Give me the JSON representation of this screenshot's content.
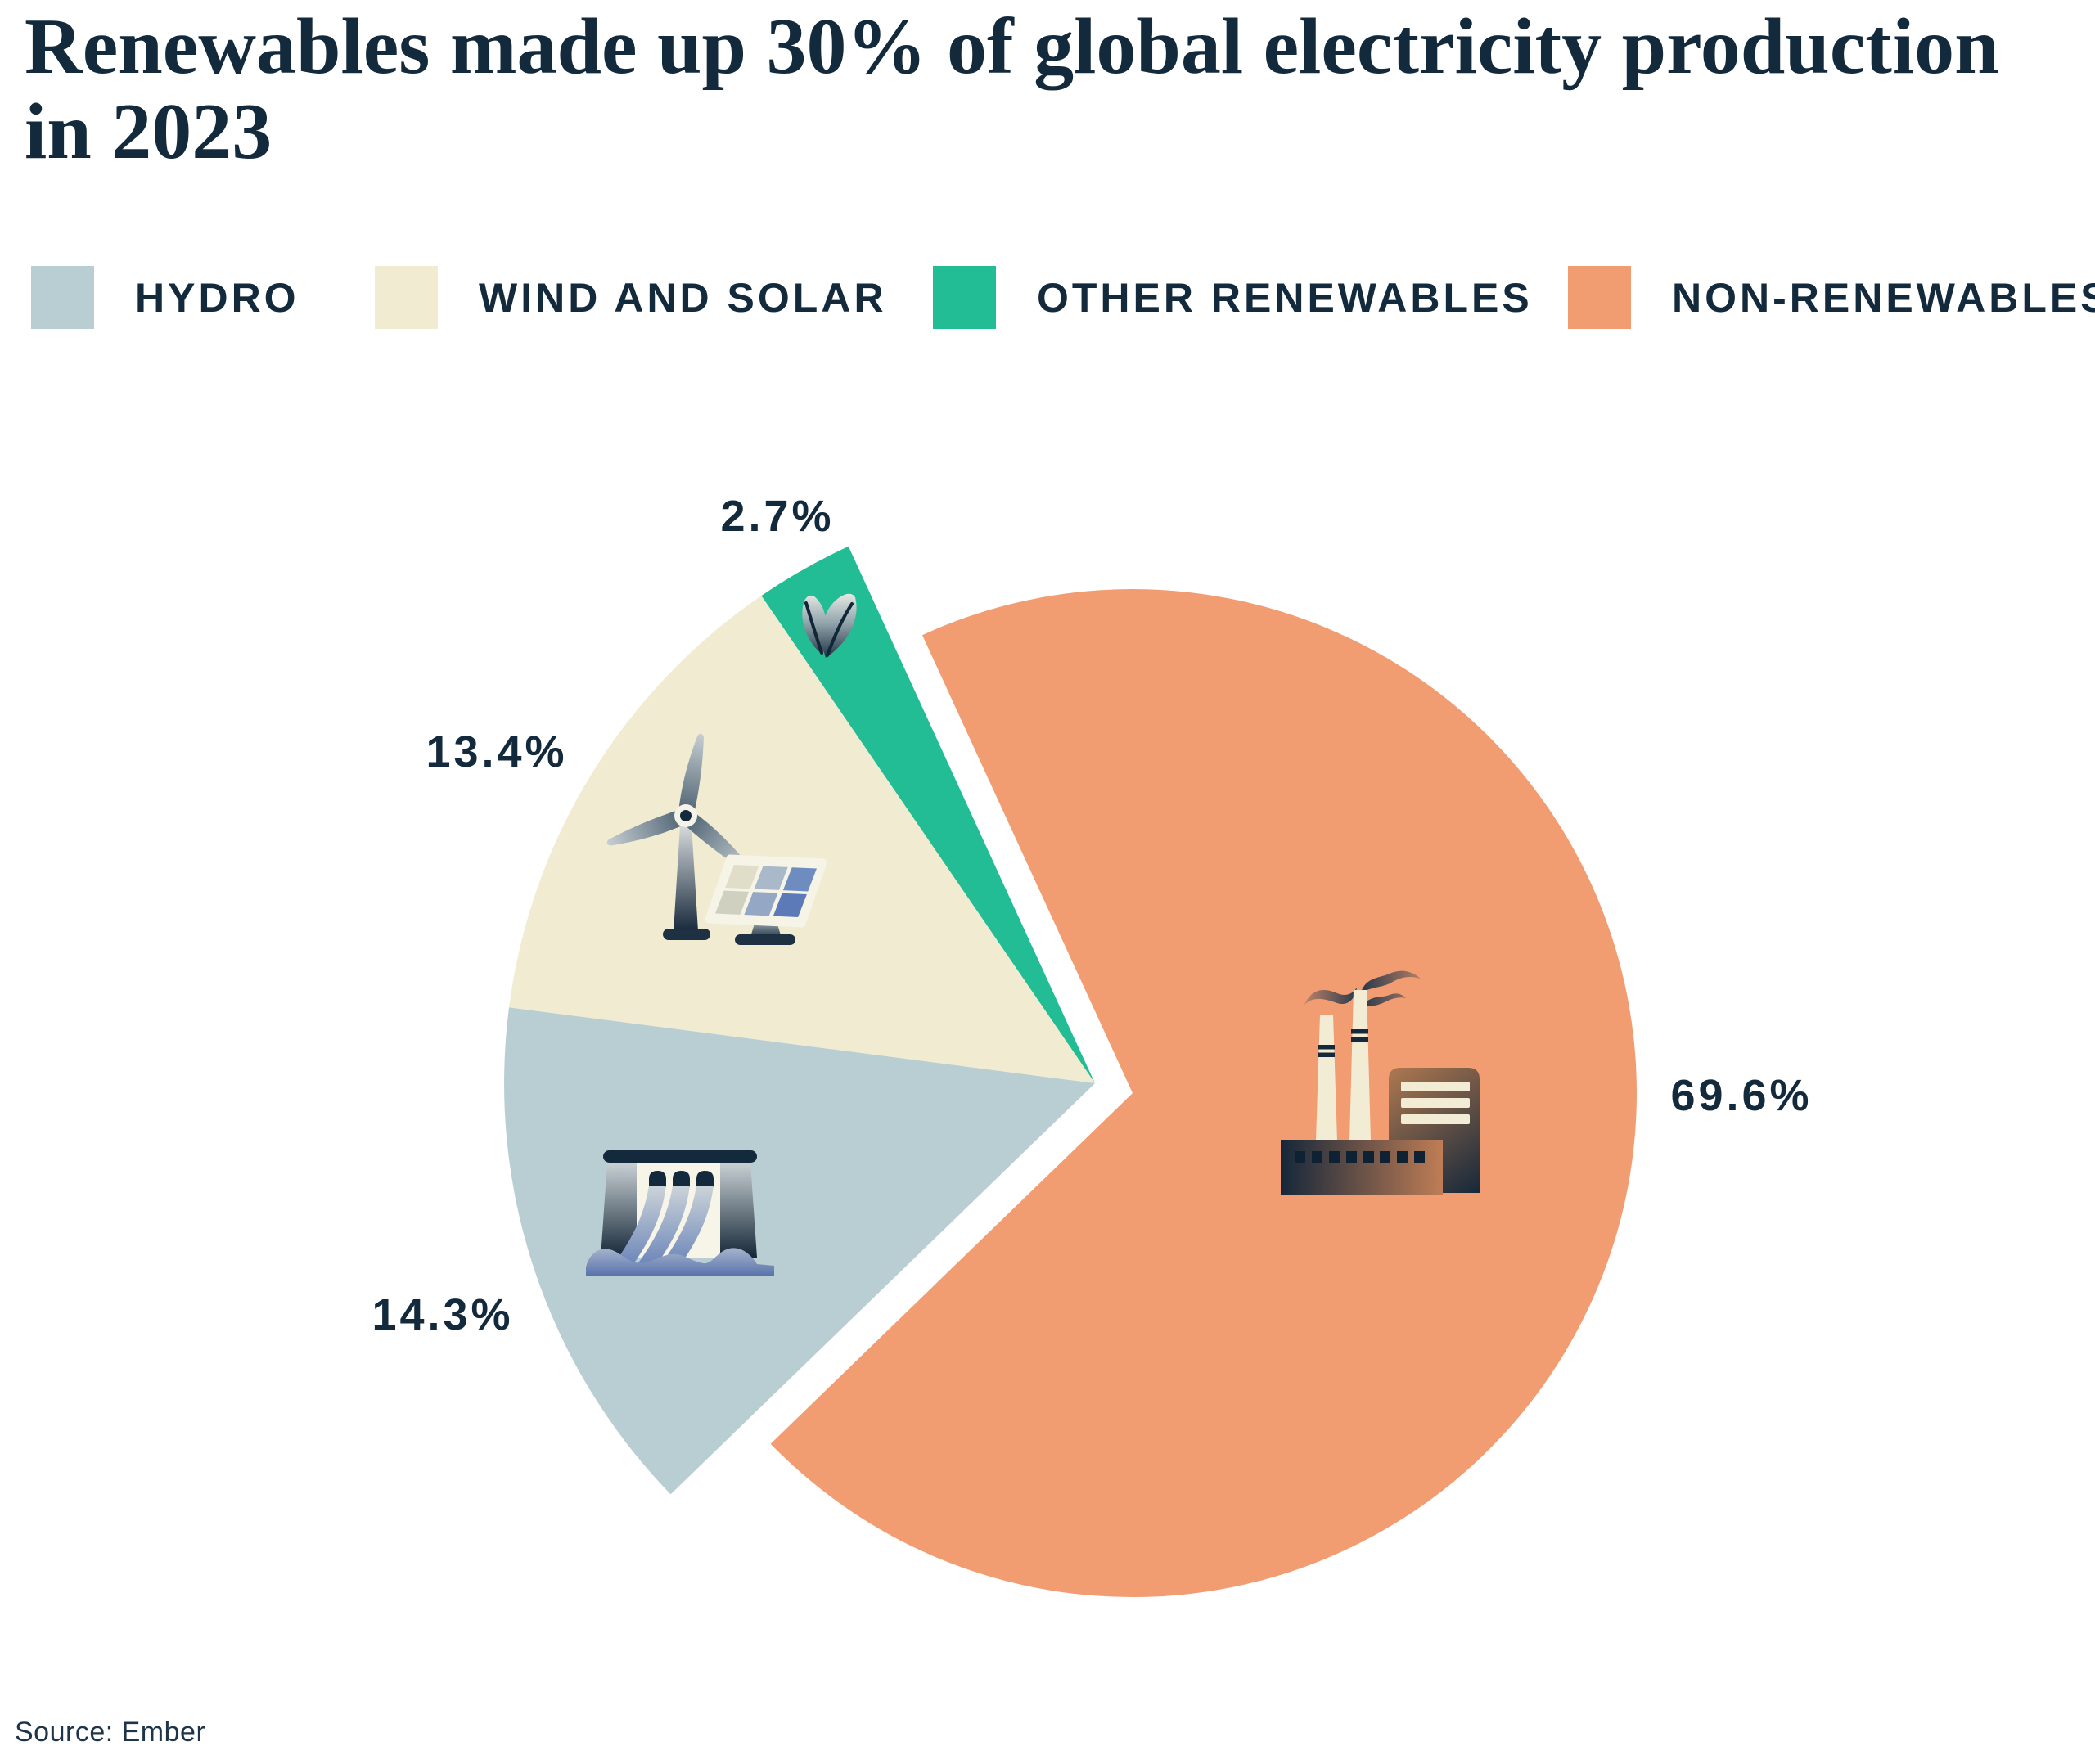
{
  "title": "Renewables made up 30% of global electricity production in 2023",
  "source": "Source: Ember",
  "accent_colors": {
    "navy": "#13293c",
    "hydro": "#b9ced3",
    "wind_and_solar": "#f1ecd1",
    "other_renewables": "#23bd95",
    "non_renewables": "#f29c72"
  },
  "legend": [
    {
      "label": "HYDRO",
      "color": "#b9ced3"
    },
    {
      "label": "WIND AND SOLAR",
      "color": "#f1ecd1"
    },
    {
      "label": "OTHER RENEWABLES",
      "color": "#23bd95"
    },
    {
      "label": "NON-RENEWABLES",
      "color": "#f29c72"
    }
  ],
  "chart_data": {
    "type": "pie",
    "title": "Renewables made up 30% of global electricity production in 2023",
    "unit": "%",
    "slices": [
      {
        "key": "other_renewables",
        "label": "OTHER RENEWABLES",
        "value": 2.7,
        "pct_label": "2.7%",
        "color": "#23bd95",
        "group": "renewables",
        "icon": "leaf-icon",
        "label_pos": [
          950,
          631
        ]
      },
      {
        "key": "wind_and_solar",
        "label": "WIND AND SOLAR",
        "value": 13.4,
        "pct_label": "13.4%",
        "color": "#f1ecd1",
        "group": "renewables",
        "icon": "wind-turbine-and-solar-panel-icon",
        "label_pos": [
          607,
          919
        ]
      },
      {
        "key": "hydro",
        "label": "HYDRO",
        "value": 14.3,
        "pct_label": "14.3%",
        "color": "#b9ced3",
        "group": "renewables",
        "icon": "hydro-dam-icon",
        "label_pos": [
          541,
          1607
        ]
      },
      {
        "key": "non_renewables",
        "label": "NON-RENEWABLES",
        "value": 69.6,
        "pct_label": "69.6%",
        "color": "#f29c72",
        "group": "main",
        "icon": "factory-icon",
        "label_pos": [
          2128,
          1339
        ]
      }
    ],
    "layout": {
      "start_angle_deg": 114.66,
      "direction": "ccw",
      "main_center": [
        1384,
        1336
      ],
      "main_radius": 616,
      "renewables_center": [
        1338,
        1324
      ],
      "renewables_radius": 722,
      "legend_position": "top",
      "labels": "outside"
    }
  }
}
